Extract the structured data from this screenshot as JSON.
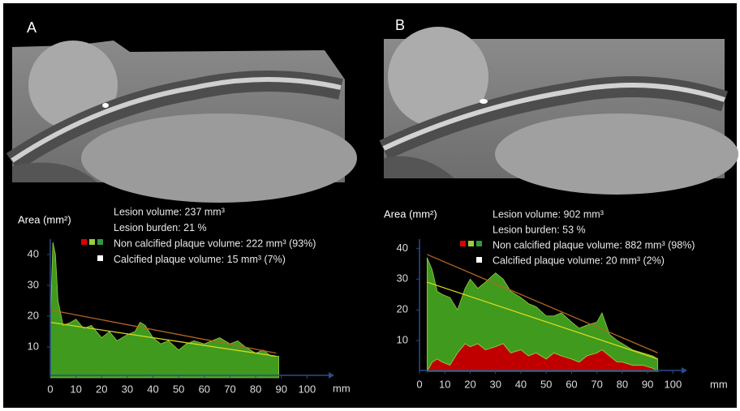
{
  "chart_data": [
    {
      "type": "area",
      "label": "A",
      "y_label": "Area (mm²)",
      "x_label": "mm",
      "annotations": [
        "Lesion volume: 237 mm³",
        "Lesion burden: 21 %",
        "Non calcified plaque volume: 222 mm³ (93%)",
        "Calcified plaque volume: 15 mm³ (7%)"
      ],
      "x": [
        0,
        1,
        2,
        3,
        5,
        8,
        10,
        13,
        16,
        20,
        23,
        26,
        30,
        33,
        35,
        37,
        40,
        43,
        46,
        50,
        53,
        56,
        60,
        63,
        66,
        70,
        73,
        76,
        80,
        83,
        86,
        89
      ],
      "series": [
        {
          "color": "#3f9a1e",
          "values": [
            18,
            44,
            40,
            25,
            17,
            18,
            19,
            16,
            17,
            13,
            15,
            12,
            14,
            15,
            18,
            17,
            13,
            11,
            12,
            9,
            11,
            12,
            11,
            12,
            13,
            11,
            12,
            10,
            8,
            9,
            7,
            7
          ]
        }
      ],
      "trend_lines": [
        {
          "color": "#b5651d",
          "x": [
            0,
            88
          ],
          "values": [
            22,
            8
          ]
        },
        {
          "color": "#d8d81c",
          "x": [
            0,
            88
          ],
          "values": [
            18,
            7
          ]
        }
      ],
      "xlim": [
        0,
        110
      ],
      "ylim": [
        0,
        45
      ],
      "xticks": [
        0,
        10,
        20,
        30,
        40,
        50,
        60,
        70,
        80,
        90,
        100
      ],
      "yticks": [
        10,
        20,
        30,
        40
      ]
    },
    {
      "type": "area",
      "label": "B",
      "y_label": "Area (mm²)",
      "x_label": "mm",
      "annotations": [
        "Lesion volume: 902 mm³",
        "Lesion burden: 53 %",
        "Non calcified plaque volume: 882 mm³ (98%)",
        "Calcified plaque volume: 20 mm³ (2%)"
      ],
      "x": [
        3,
        5,
        7,
        9,
        12,
        15,
        18,
        20,
        23,
        26,
        30,
        33,
        36,
        40,
        43,
        46,
        50,
        53,
        56,
        60,
        63,
        66,
        70,
        72,
        75,
        78,
        80,
        84,
        88,
        92,
        94
      ],
      "series": [
        {
          "color": "#c00000",
          "values": [
            0,
            3,
            4,
            3,
            2,
            6,
            9,
            8,
            9,
            7,
            8,
            9,
            6,
            7,
            5,
            6,
            4,
            6,
            5,
            4,
            3,
            5,
            6,
            7,
            5,
            3,
            3,
            2,
            2,
            1,
            0
          ]
        },
        {
          "color": "#3f9a1e",
          "values": [
            37,
            30,
            22,
            22,
            22,
            14,
            18,
            22,
            18,
            22,
            24,
            21,
            20,
            17,
            17,
            15,
            14,
            12,
            14,
            12,
            11,
            10,
            10,
            12,
            7,
            7,
            6,
            5,
            4,
            4,
            4
          ]
        }
      ],
      "trend_lines": [
        {
          "color": "#b5651d",
          "x": [
            3,
            94
          ],
          "values": [
            38,
            6
          ]
        },
        {
          "color": "#d8d81c",
          "x": [
            3,
            94
          ],
          "values": [
            29,
            4
          ]
        }
      ],
      "xlim": [
        0,
        105
      ],
      "ylim": [
        0,
        43
      ],
      "xticks": [
        0,
        10,
        20,
        30,
        40,
        50,
        60,
        70,
        80,
        90,
        100
      ],
      "yticks": [
        10,
        20,
        30,
        40
      ]
    }
  ]
}
